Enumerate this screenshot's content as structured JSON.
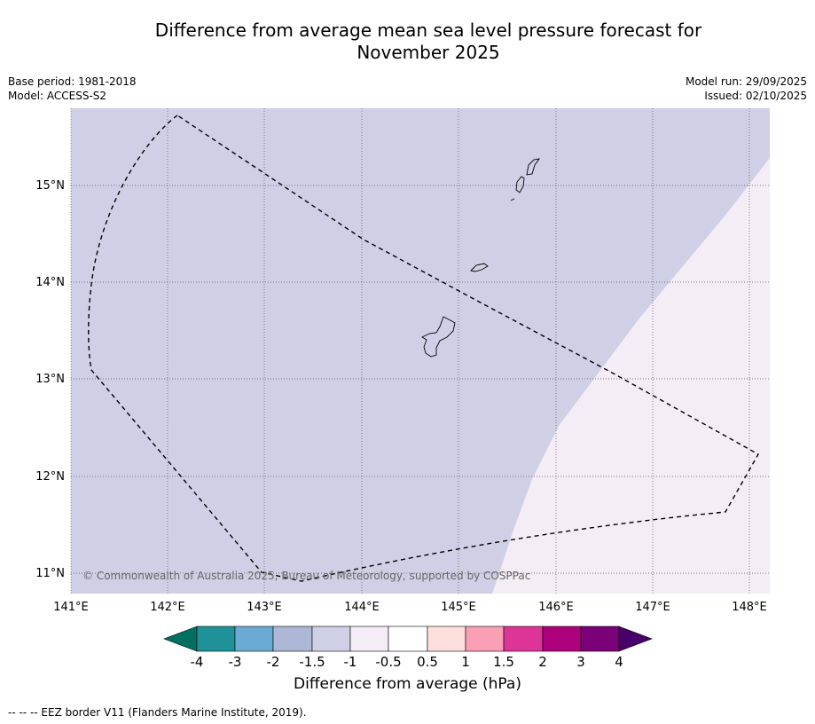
{
  "header": {
    "title_line1": "Difference from average mean sea level pressure forecast for",
    "title_line2": "November 2025",
    "base_period": "Base period: 1981-2018",
    "model": "Model: ACCESS-S2",
    "model_run": "Model run: 29/09/2025",
    "issued": "Issued: 02/10/2025"
  },
  "map": {
    "lon_labels": [
      "141°E",
      "142°E",
      "143°E",
      "144°E",
      "145°E",
      "146°E",
      "147°E",
      "148°E"
    ],
    "lat_labels": [
      "15°N",
      "14°N",
      "13°N",
      "12°N",
      "11°N"
    ],
    "copyright": "© Commonwealth of Australia 2025, Bureau of Meteorology, supported by COSPPac",
    "regions": [
      {
        "category": "-1.5 to -1",
        "color": "#cfd0e5"
      },
      {
        "category": "-1 to -0.5",
        "color": "#f4edf5"
      }
    ],
    "border_style": "dashed black"
  },
  "colorbar": {
    "title": "Difference from average (hPa)",
    "tick_labels": [
      "-4",
      "-3",
      "-2",
      "-1.5",
      "-1",
      "-0.5",
      "0.5",
      "1",
      "1.5",
      "2",
      "3",
      "4"
    ],
    "colors": [
      "#007060",
      "#1e9298",
      "#6aaad3",
      "#adb8d6",
      "#cfd0e5",
      "#f4edf5",
      "#ffffff",
      "#fde0dd",
      "#fa9fb5",
      "#dd3497",
      "#ae017e",
      "#7a0177",
      "#49006a"
    ]
  },
  "footer": {
    "legend_text": "--  --  -- EEZ border V11 (Flanders Marine Institute, 2019)."
  }
}
